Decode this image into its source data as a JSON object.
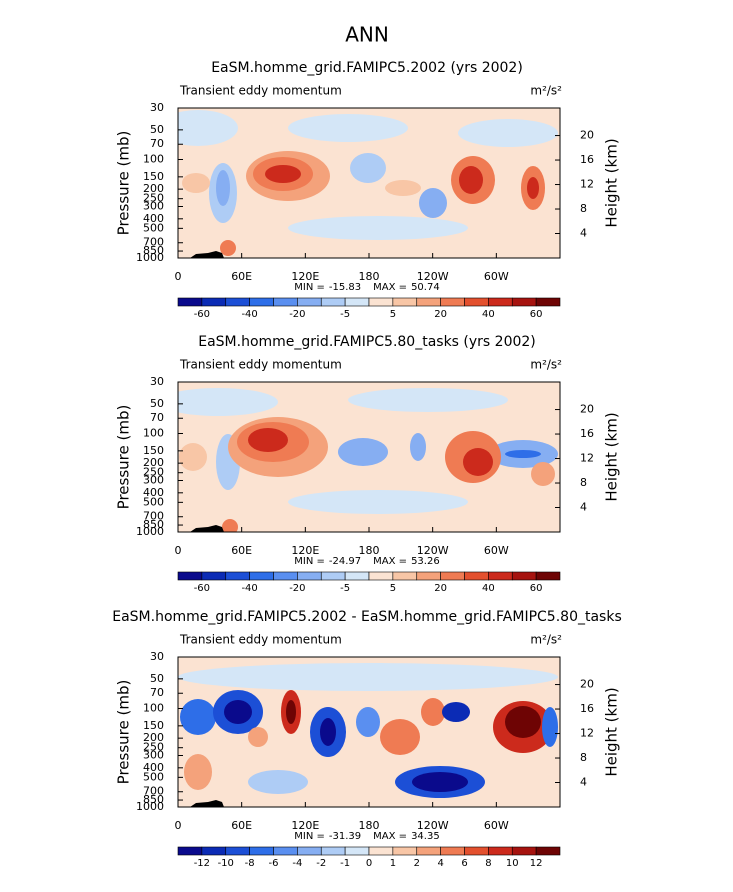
{
  "figure": {
    "title": "ANN"
  },
  "chart_data": [
    {
      "type": "contour",
      "title": "EaSM.homme_grid.FAMIPC5.2002 (yrs 2002)",
      "subtitle": "Transient eddy momentum",
      "units": "m²/s²",
      "y_label": "Pressure (mb)",
      "y2_label": "Height (km)",
      "xlim": [
        0,
        360
      ],
      "xticks": [
        0,
        {
          "value": 60,
          "label": "60E"
        },
        {
          "value": 120,
          "label": "120E"
        },
        180,
        {
          "value": 240,
          "label": "120W"
        },
        {
          "value": 300,
          "label": "60W"
        }
      ],
      "ylim": [
        1000,
        30
      ],
      "yticks": [
        30,
        50,
        70,
        100,
        150,
        200,
        250,
        300,
        400,
        500,
        700,
        850,
        1000
      ],
      "log_scale": true,
      "y2lim": [
        0,
        24.5
      ],
      "y2ticks": [
        4,
        8,
        12,
        16,
        20
      ],
      "stats": [
        {
          "label": "MIN =",
          "value": -15.83
        },
        {
          "label": "MAX =",
          "value": 50.74
        }
      ],
      "colorbar": {
        "levels": [
          -60,
          -40,
          -20,
          -5,
          5,
          20,
          40,
          60
        ],
        "colors": [
          "#0a0a8c",
          "#0b2bb5",
          "#1c4fd6",
          "#2e6ee8",
          "#5a8ff0",
          "#86aef2",
          "#aeccf5",
          "#d4e6f7",
          "#fbe3d2",
          "#f8c6a6",
          "#f4a27b",
          "#ef7b53",
          "#e3502e",
          "#cc2a1c",
          "#a6130f",
          "#6e0404"
        ]
      }
    },
    {
      "type": "contour",
      "title": "EaSM.homme_grid.FAMIPC5.80_tasks (yrs 2002)",
      "subtitle": "Transient eddy momentum",
      "units": "m²/s²",
      "y_label": "Pressure (mb)",
      "y2_label": "Height (km)",
      "xlim": [
        0,
        360
      ],
      "xticks": [
        0,
        {
          "value": 60,
          "label": "60E"
        },
        {
          "value": 120,
          "label": "120E"
        },
        180,
        {
          "value": 240,
          "label": "120W"
        },
        {
          "value": 300,
          "label": "60W"
        }
      ],
      "ylim": [
        1000,
        30
      ],
      "yticks": [
        30,
        50,
        70,
        100,
        150,
        200,
        250,
        300,
        400,
        500,
        700,
        850,
        1000
      ],
      "log_scale": true,
      "y2lim": [
        0,
        24.5
      ],
      "y2ticks": [
        4,
        8,
        12,
        16,
        20
      ],
      "stats": [
        {
          "label": "MIN =",
          "value": -24.97
        },
        {
          "label": "MAX =",
          "value": 53.26
        }
      ],
      "colorbar": {
        "levels": [
          -60,
          -40,
          -20,
          -5,
          5,
          20,
          40,
          60
        ],
        "colors": [
          "#0a0a8c",
          "#0b2bb5",
          "#1c4fd6",
          "#2e6ee8",
          "#5a8ff0",
          "#86aef2",
          "#aeccf5",
          "#d4e6f7",
          "#fbe3d2",
          "#f8c6a6",
          "#f4a27b",
          "#ef7b53",
          "#e3502e",
          "#cc2a1c",
          "#a6130f",
          "#6e0404"
        ]
      }
    },
    {
      "type": "contour",
      "title": "EaSM.homme_grid.FAMIPC5.2002 - EaSM.homme_grid.FAMIPC5.80_tasks",
      "subtitle": "Transient eddy momentum",
      "units": "m²/s²",
      "y_label": "Pressure (mb)",
      "y2_label": "Height (km)",
      "xlim": [
        0,
        360
      ],
      "xticks": [
        0,
        {
          "value": 60,
          "label": "60E"
        },
        {
          "value": 120,
          "label": "120E"
        },
        180,
        {
          "value": 240,
          "label": "120W"
        },
        {
          "value": 300,
          "label": "60W"
        }
      ],
      "ylim": [
        1000,
        30
      ],
      "yticks": [
        30,
        50,
        70,
        100,
        150,
        200,
        250,
        300,
        400,
        500,
        700,
        850,
        1000
      ],
      "log_scale": true,
      "y2lim": [
        0,
        24.5
      ],
      "y2ticks": [
        4,
        8,
        12,
        16,
        20
      ],
      "stats": [
        {
          "label": "MIN =",
          "value": -31.39
        },
        {
          "label": "MAX =",
          "value": 34.35
        }
      ],
      "colorbar": {
        "levels": [
          -12,
          -10,
          -8,
          -6,
          -4,
          -2,
          -1,
          0,
          1,
          2,
          4,
          6,
          8,
          10,
          12
        ],
        "colors": [
          "#0a0a8c",
          "#0b2bb5",
          "#1c4fd6",
          "#2e6ee8",
          "#5a8ff0",
          "#86aef2",
          "#aeccf5",
          "#d4e6f7",
          "#fbe3d2",
          "#f8c6a6",
          "#f4a27b",
          "#ef7b53",
          "#e3502e",
          "#cc2a1c",
          "#a6130f",
          "#6e0404"
        ]
      }
    }
  ]
}
